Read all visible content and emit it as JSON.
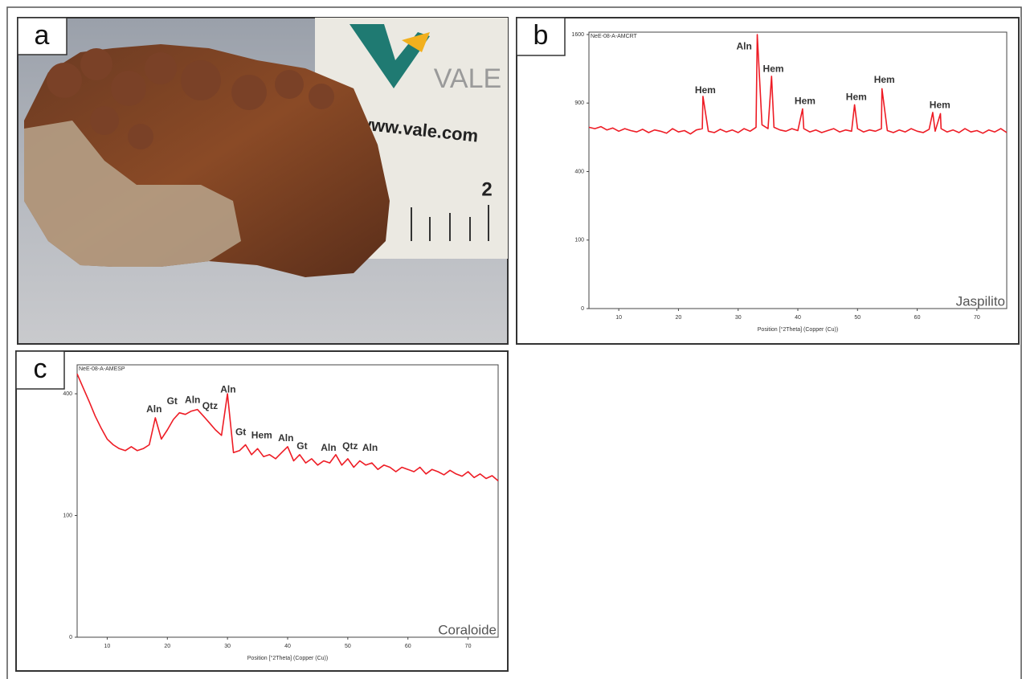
{
  "photo": {
    "panel_label": "a",
    "logo_text": "VALE",
    "url_text": "www.vale.com",
    "scale_number": "2"
  },
  "chart_data": [
    {
      "type": "line",
      "panel_label": "b",
      "title": "NeE-08-A-AMCRT",
      "corner_label": "Jaspilito",
      "xlabel": "Position [°2Theta] (Copper (Cu))",
      "y_scale": "sqrt",
      "color": "#ee1c25",
      "xlim": [
        5,
        75
      ],
      "xticks": [
        10,
        20,
        30,
        40,
        50,
        60,
        70
      ],
      "ylim": [
        0,
        1600
      ],
      "yticks": [
        0,
        100,
        400,
        900,
        1600
      ],
      "x": [
        5,
        6,
        7,
        8,
        9,
        10,
        11,
        12,
        13,
        14,
        15,
        16,
        17,
        18,
        19,
        20,
        21,
        22,
        23,
        24,
        24.1,
        25,
        26,
        27,
        28,
        29,
        30,
        31,
        32,
        33,
        33.2,
        34,
        35,
        35.6,
        36,
        37,
        38,
        39,
        40,
        40.8,
        41,
        42,
        43,
        44,
        45,
        46,
        47,
        48,
        49,
        49.5,
        50,
        51,
        52,
        53,
        54,
        54.1,
        55,
        56,
        57,
        58,
        59,
        60,
        61,
        62,
        62.6,
        63,
        63.9,
        64,
        65,
        66,
        67,
        68,
        69,
        70,
        71,
        72,
        73,
        74,
        75
      ],
      "values": [
        700,
        690,
        705,
        680,
        695,
        670,
        690,
        675,
        665,
        685,
        660,
        680,
        670,
        655,
        690,
        665,
        675,
        650,
        680,
        690,
        960,
        670,
        660,
        685,
        665,
        680,
        660,
        690,
        670,
        700,
        1600,
        720,
        690,
        1150,
        700,
        680,
        670,
        690,
        675,
        850,
        690,
        665,
        680,
        660,
        675,
        690,
        665,
        680,
        670,
        885,
        690,
        665,
        680,
        670,
        690,
        1030,
        675,
        660,
        680,
        665,
        690,
        670,
        660,
        685,
        820,
        670,
        810,
        690,
        665,
        680,
        660,
        690,
        665,
        675,
        655,
        680,
        665,
        690,
        660
      ],
      "annotations": [
        {
          "text": "Hem",
          "x": 24.5,
          "y": 1010
        },
        {
          "text": "Aln",
          "x": 31,
          "y": 1460
        },
        {
          "text": "Hem",
          "x": 35.9,
          "y": 1220
        },
        {
          "text": "Hem",
          "x": 41.2,
          "y": 915
        },
        {
          "text": "Hem",
          "x": 49.8,
          "y": 950
        },
        {
          "text": "Hem",
          "x": 54.5,
          "y": 1110
        },
        {
          "text": "Hem",
          "x": 63.8,
          "y": 880
        }
      ]
    },
    {
      "type": "line",
      "panel_label": "c",
      "title": "NeE-08-A-AMESP",
      "corner_label": "Coraloide",
      "xlabel": "Position [°2Theta] (Copper (Cu))",
      "y_scale": "sqrt",
      "color": "#ee1c25",
      "xlim": [
        5,
        75
      ],
      "xticks": [
        10,
        20,
        30,
        40,
        50,
        60,
        70
      ],
      "ylim": [
        0,
        492
      ],
      "yticks": [
        0,
        100,
        400
      ],
      "x": [
        5,
        6,
        7,
        8,
        9,
        10,
        11,
        12,
        13,
        14,
        15,
        16,
        17,
        18,
        19,
        20,
        21,
        22,
        23,
        24,
        25,
        26,
        27,
        28,
        29,
        30,
        31,
        32,
        33,
        34,
        35,
        36,
        37,
        38,
        39,
        40,
        41,
        42,
        43,
        44,
        45,
        46,
        47,
        48,
        49,
        50,
        51,
        52,
        53,
        54,
        55,
        56,
        57,
        58,
        59,
        60,
        61,
        62,
        63,
        64,
        65,
        66,
        67,
        68,
        69,
        70,
        71,
        72,
        73,
        74,
        75
      ],
      "values": [
        468,
        420,
        375,
        330,
        295,
        265,
        250,
        240,
        235,
        245,
        235,
        240,
        250,
        325,
        265,
        290,
        320,
        340,
        335,
        345,
        350,
        330,
        310,
        290,
        275,
        400,
        230,
        235,
        250,
        225,
        240,
        220,
        225,
        215,
        230,
        245,
        210,
        225,
        205,
        215,
        200,
        210,
        205,
        225,
        200,
        215,
        195,
        210,
        200,
        205,
        190,
        200,
        195,
        185,
        195,
        190,
        185,
        195,
        180,
        190,
        185,
        178,
        188,
        180,
        175,
        185,
        172,
        180,
        170,
        176,
        165
      ],
      "annotations": [
        {
          "text": "Aln",
          "x": 17.8,
          "y": 349
        },
        {
          "text": "Gt",
          "x": 20.8,
          "y": 374
        },
        {
          "text": "Aln",
          "x": 24.2,
          "y": 379
        },
        {
          "text": "Qtz",
          "x": 27.1,
          "y": 359
        },
        {
          "text": "Aln",
          "x": 30.1,
          "y": 413
        },
        {
          "text": "Gt",
          "x": 32.2,
          "y": 283
        },
        {
          "text": "Hem",
          "x": 35.7,
          "y": 274
        },
        {
          "text": "Aln",
          "x": 39.7,
          "y": 266
        },
        {
          "text": "Gt",
          "x": 42.4,
          "y": 245
        },
        {
          "text": "Aln",
          "x": 46.8,
          "y": 241
        },
        {
          "text": "Qtz",
          "x": 50.4,
          "y": 245
        },
        {
          "text": "Aln",
          "x": 53.7,
          "y": 241
        }
      ]
    }
  ]
}
